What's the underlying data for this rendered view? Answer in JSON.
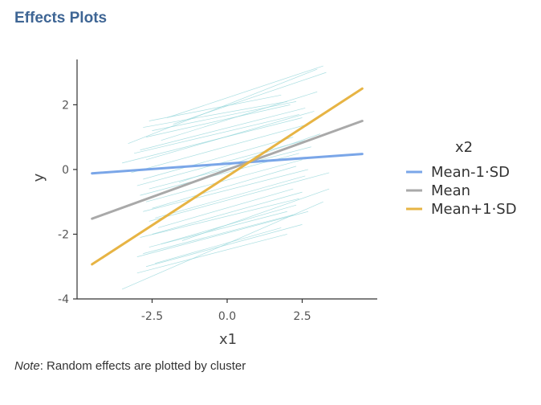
{
  "header": {
    "title": "Effects Plots"
  },
  "note": {
    "label": "Note",
    "text": ": Random effects are plotted by cluster"
  },
  "chart_data": {
    "type": "line",
    "title": "",
    "xlabel": "x1",
    "ylabel": "y",
    "xlim": [
      -5.0,
      5.0
    ],
    "ylim": [
      -4.0,
      3.4
    ],
    "x_ticks": [
      -2.5,
      0.0,
      2.5
    ],
    "x_tick_labels": [
      "-2.5",
      "0.0",
      "2.5"
    ],
    "y_ticks": [
      -4,
      -2,
      0,
      2
    ],
    "y_tick_labels": [
      "-4",
      "-2",
      "0",
      "2"
    ],
    "grid": false,
    "legend_title": "x2",
    "legend_position": "right",
    "series": [
      {
        "name": "Mean-1·SD",
        "color": "#7aa6e8",
        "x": [
          -4.5,
          4.5
        ],
        "y": [
          -0.12,
          0.48
        ]
      },
      {
        "name": "Mean",
        "color": "#a9a9a9",
        "x": [
          -4.5,
          4.5
        ],
        "y": [
          -1.52,
          1.5
        ]
      },
      {
        "name": "Mean+1·SD",
        "color": "#e7b444",
        "x": [
          -4.5,
          4.5
        ],
        "y": [
          -2.93,
          2.5
        ]
      }
    ],
    "random_effects": {
      "color": "#8fd4d8",
      "lines": [
        {
          "x": [
            -3.3,
            3.0
          ],
          "y": [
            0.8,
            3.1
          ]
        },
        {
          "x": [
            -2.0,
            3.2
          ],
          "y": [
            1.6,
            3.2
          ]
        },
        {
          "x": [
            -1.8,
            3.3
          ],
          "y": [
            1.4,
            3.0
          ]
        },
        {
          "x": [
            -2.5,
            2.3
          ],
          "y": [
            1.2,
            2.1
          ]
        },
        {
          "x": [
            -2.7,
            2.1
          ],
          "y": [
            1.0,
            2.0
          ]
        },
        {
          "x": [
            -2.8,
            2.0
          ],
          "y": [
            1.3,
            2.1
          ]
        },
        {
          "x": [
            -2.6,
            1.8
          ],
          "y": [
            1.5,
            2.3
          ]
        },
        {
          "x": [
            -2.9,
            2.6
          ],
          "y": [
            0.6,
            1.9
          ]
        },
        {
          "x": [
            -3.1,
            2.4
          ],
          "y": [
            0.5,
            1.7
          ]
        },
        {
          "x": [
            -2.7,
            2.9
          ],
          "y": [
            0.3,
            1.8
          ]
        },
        {
          "x": [
            -3.5,
            2.5
          ],
          "y": [
            0.2,
            1.6
          ]
        },
        {
          "x": [
            -3.2,
            2.7
          ],
          "y": [
            -0.1,
            1.4
          ]
        },
        {
          "x": [
            -2.8,
            2.2
          ],
          "y": [
            -0.3,
            1.0
          ]
        },
        {
          "x": [
            -3.0,
            2.6
          ],
          "y": [
            -0.5,
            0.9
          ]
        },
        {
          "x": [
            -2.6,
            2.8
          ],
          "y": [
            -0.6,
            0.7
          ]
        },
        {
          "x": [
            -2.9,
            2.4
          ],
          "y": [
            -0.8,
            0.5
          ]
        },
        {
          "x": [
            -2.7,
            2.5
          ],
          "y": [
            -1.0,
            0.3
          ]
        },
        {
          "x": [
            -2.5,
            2.3
          ],
          "y": [
            -1.2,
            0.1
          ]
        },
        {
          "x": [
            -2.8,
            2.7
          ],
          "y": [
            -1.3,
            0.0
          ]
        },
        {
          "x": [
            -2.4,
            2.6
          ],
          "y": [
            -1.5,
            -0.2
          ]
        },
        {
          "x": [
            -2.6,
            3.4
          ],
          "y": [
            -1.6,
            -0.1
          ]
        },
        {
          "x": [
            -2.3,
            2.2
          ],
          "y": [
            -1.8,
            -0.6
          ]
        },
        {
          "x": [
            -2.5,
            2.5
          ],
          "y": [
            -2.0,
            -0.7
          ]
        },
        {
          "x": [
            -2.9,
            2.4
          ],
          "y": [
            -2.1,
            -0.9
          ]
        },
        {
          "x": [
            -2.2,
            2.3
          ],
          "y": [
            -2.3,
            -1.1
          ]
        },
        {
          "x": [
            -2.6,
            2.0
          ],
          "y": [
            -2.4,
            -1.3
          ]
        },
        {
          "x": [
            -2.8,
            2.2
          ],
          "y": [
            -2.6,
            -1.4
          ]
        },
        {
          "x": [
            -3.0,
            2.7
          ],
          "y": [
            -2.7,
            -1.3
          ]
        },
        {
          "x": [
            -2.4,
            1.8
          ],
          "y": [
            -2.9,
            -1.8
          ]
        },
        {
          "x": [
            -2.7,
            2.5
          ],
          "y": [
            -3.0,
            -1.7
          ]
        },
        {
          "x": [
            -3.0,
            2.0
          ],
          "y": [
            -3.2,
            -2.0
          ]
        },
        {
          "x": [
            -3.5,
            3.2
          ],
          "y": [
            -3.7,
            -1.0
          ]
        },
        {
          "x": [
            -1.5,
            3.4
          ],
          "y": [
            -2.2,
            -0.6
          ]
        },
        {
          "x": [
            -2.2,
            3.0
          ],
          "y": [
            0.9,
            2.4
          ]
        },
        {
          "x": [
            -1.6,
            3.1
          ],
          "y": [
            -0.4,
            1.1
          ]
        }
      ]
    }
  }
}
